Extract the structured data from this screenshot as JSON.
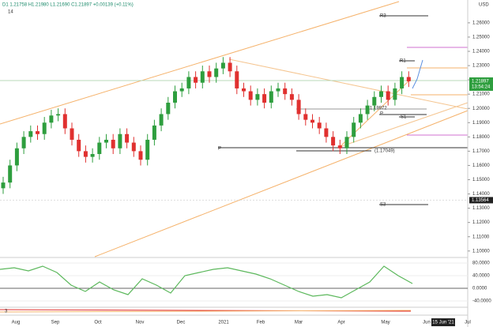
{
  "header": {
    "ohlc": "D1 1.21758 H1.21980 L1.21690 C1.21897 +0.00139 (+0.11%)",
    "period": "14",
    "currency": "USD"
  },
  "chart_data": {
    "type": "candlestick",
    "up_color": "#2e9e3e",
    "down_color": "#e0302f",
    "open": [
      1.144,
      1.148,
      1.16,
      1.172,
      1.18,
      1.184,
      1.182,
      1.19,
      1.195,
      1.196,
      1.186,
      1.178,
      1.17,
      1.166,
      1.168,
      1.176,
      1.178,
      1.172,
      1.182,
      1.176,
      1.17,
      1.164,
      1.178,
      1.188,
      1.196,
      1.204,
      1.212,
      1.214,
      1.222,
      1.218,
      1.226,
      1.222,
      1.228,
      1.232,
      1.226,
      1.214,
      1.212,
      1.206,
      1.21,
      1.204,
      1.212,
      1.214,
      1.21,
      1.206,
      1.196,
      1.192,
      1.19,
      1.186,
      1.18,
      1.174,
      1.172,
      1.18,
      1.19,
      1.196,
      1.202,
      1.208,
      1.212,
      1.206,
      1.214,
      1.222
    ],
    "high": [
      1.152,
      1.164,
      1.176,
      1.184,
      1.188,
      1.188,
      1.194,
      1.199,
      1.2,
      1.2,
      1.19,
      1.182,
      1.174,
      1.172,
      1.18,
      1.182,
      1.182,
      1.186,
      1.186,
      1.18,
      1.174,
      1.182,
      1.192,
      1.2,
      1.208,
      1.216,
      1.218,
      1.226,
      1.226,
      1.23,
      1.23,
      1.232,
      1.236,
      1.236,
      1.23,
      1.218,
      1.216,
      1.214,
      1.214,
      1.216,
      1.218,
      1.218,
      1.214,
      1.21,
      1.2,
      1.196,
      1.194,
      1.19,
      1.184,
      1.178,
      1.184,
      1.194,
      1.2,
      1.206,
      1.212,
      1.216,
      1.216,
      1.218,
      1.226,
      1.226
    ],
    "low": [
      1.14,
      1.144,
      1.156,
      1.168,
      1.176,
      1.178,
      1.178,
      1.186,
      1.191,
      1.182,
      1.174,
      1.166,
      1.162,
      1.162,
      1.164,
      1.172,
      1.168,
      1.168,
      1.172,
      1.166,
      1.16,
      1.16,
      1.174,
      1.184,
      1.192,
      1.2,
      1.208,
      1.21,
      1.214,
      1.214,
      1.218,
      1.218,
      1.224,
      1.222,
      1.21,
      1.208,
      1.202,
      1.202,
      1.2,
      1.2,
      1.208,
      1.206,
      1.202,
      1.192,
      1.188,
      1.186,
      1.182,
      1.176,
      1.17,
      1.168,
      1.168,
      1.176,
      1.186,
      1.192,
      1.198,
      1.204,
      1.202,
      1.202,
      1.21,
      1.215
    ],
    "close": [
      1.148,
      1.16,
      1.172,
      1.18,
      1.184,
      1.182,
      1.19,
      1.195,
      1.196,
      1.186,
      1.178,
      1.17,
      1.166,
      1.168,
      1.176,
      1.178,
      1.172,
      1.182,
      1.176,
      1.17,
      1.164,
      1.178,
      1.188,
      1.196,
      1.204,
      1.212,
      1.214,
      1.222,
      1.218,
      1.226,
      1.222,
      1.228,
      1.232,
      1.226,
      1.214,
      1.212,
      1.206,
      1.21,
      1.204,
      1.212,
      1.214,
      1.21,
      1.206,
      1.196,
      1.192,
      1.19,
      1.186,
      1.18,
      1.174,
      1.172,
      1.18,
      1.19,
      1.196,
      1.202,
      1.208,
      1.212,
      1.206,
      1.214,
      1.222,
      1.219
    ],
    "ylim": [
      1.096,
      1.276
    ],
    "yticks": [
      {
        "value": 1.26,
        "label": "1.26000"
      },
      {
        "value": 1.25,
        "label": "1.25000"
      },
      {
        "value": 1.24,
        "label": "1.24000"
      },
      {
        "value": 1.23,
        "label": "1.23000"
      },
      {
        "value": 1.22,
        "label": "1.22000"
      },
      {
        "value": 1.21,
        "label": "1.21000"
      },
      {
        "value": 1.2,
        "label": "1.20000"
      },
      {
        "value": 1.19,
        "label": "1.19000"
      },
      {
        "value": 1.18,
        "label": "1.18000"
      },
      {
        "value": 1.17,
        "label": "1.17000"
      },
      {
        "value": 1.16,
        "label": "1.16000"
      },
      {
        "value": 1.15,
        "label": "1.15000"
      },
      {
        "value": 1.14,
        "label": "1.14000"
      },
      {
        "value": 1.13,
        "label": "1.13000"
      },
      {
        "value": 1.12,
        "label": "1.12000"
      },
      {
        "value": 1.11,
        "label": "1.11000"
      },
      {
        "value": 1.1,
        "label": "1.10000"
      }
    ],
    "months": [
      "Aug",
      "Sep",
      "Oct",
      "Nov",
      "Dec",
      "2021",
      "Feb",
      "Mar",
      "Apr",
      "May",
      "Jun",
      "Jul"
    ],
    "date_marker": "15 Jun '21",
    "last_price": {
      "value": 1.21897,
      "label": "1.21897",
      "timer": "13:54:24",
      "color": "#2e9e3e"
    },
    "cursor_price": {
      "value": 1.13564,
      "label": "1.13564"
    },
    "annotations": [
      "R3",
      "R1",
      "P",
      "S1",
      "S3",
      "P",
      "(1.17049)",
      "1.19972"
    ],
    "oscillator": {
      "color": "#5cb85c",
      "negative_color": "#e0302f",
      "label": "3",
      "values": [
        60,
        65,
        55,
        70,
        50,
        10,
        -10,
        20,
        -5,
        -20,
        30,
        10,
        -15,
        40,
        50,
        60,
        65,
        55,
        45,
        30,
        10,
        -10,
        -25,
        -20,
        -30,
        -5,
        20,
        70,
        40,
        15
      ],
      "ylim": [
        -57.5,
        92.5
      ],
      "yticks": [
        {
          "value": 80,
          "label": "80.0000"
        },
        {
          "value": 40,
          "label": "40.0000"
        },
        {
          "value": 0,
          "label": "0.0000"
        },
        {
          "value": -40,
          "label": "-40.0000"
        }
      ]
    }
  }
}
